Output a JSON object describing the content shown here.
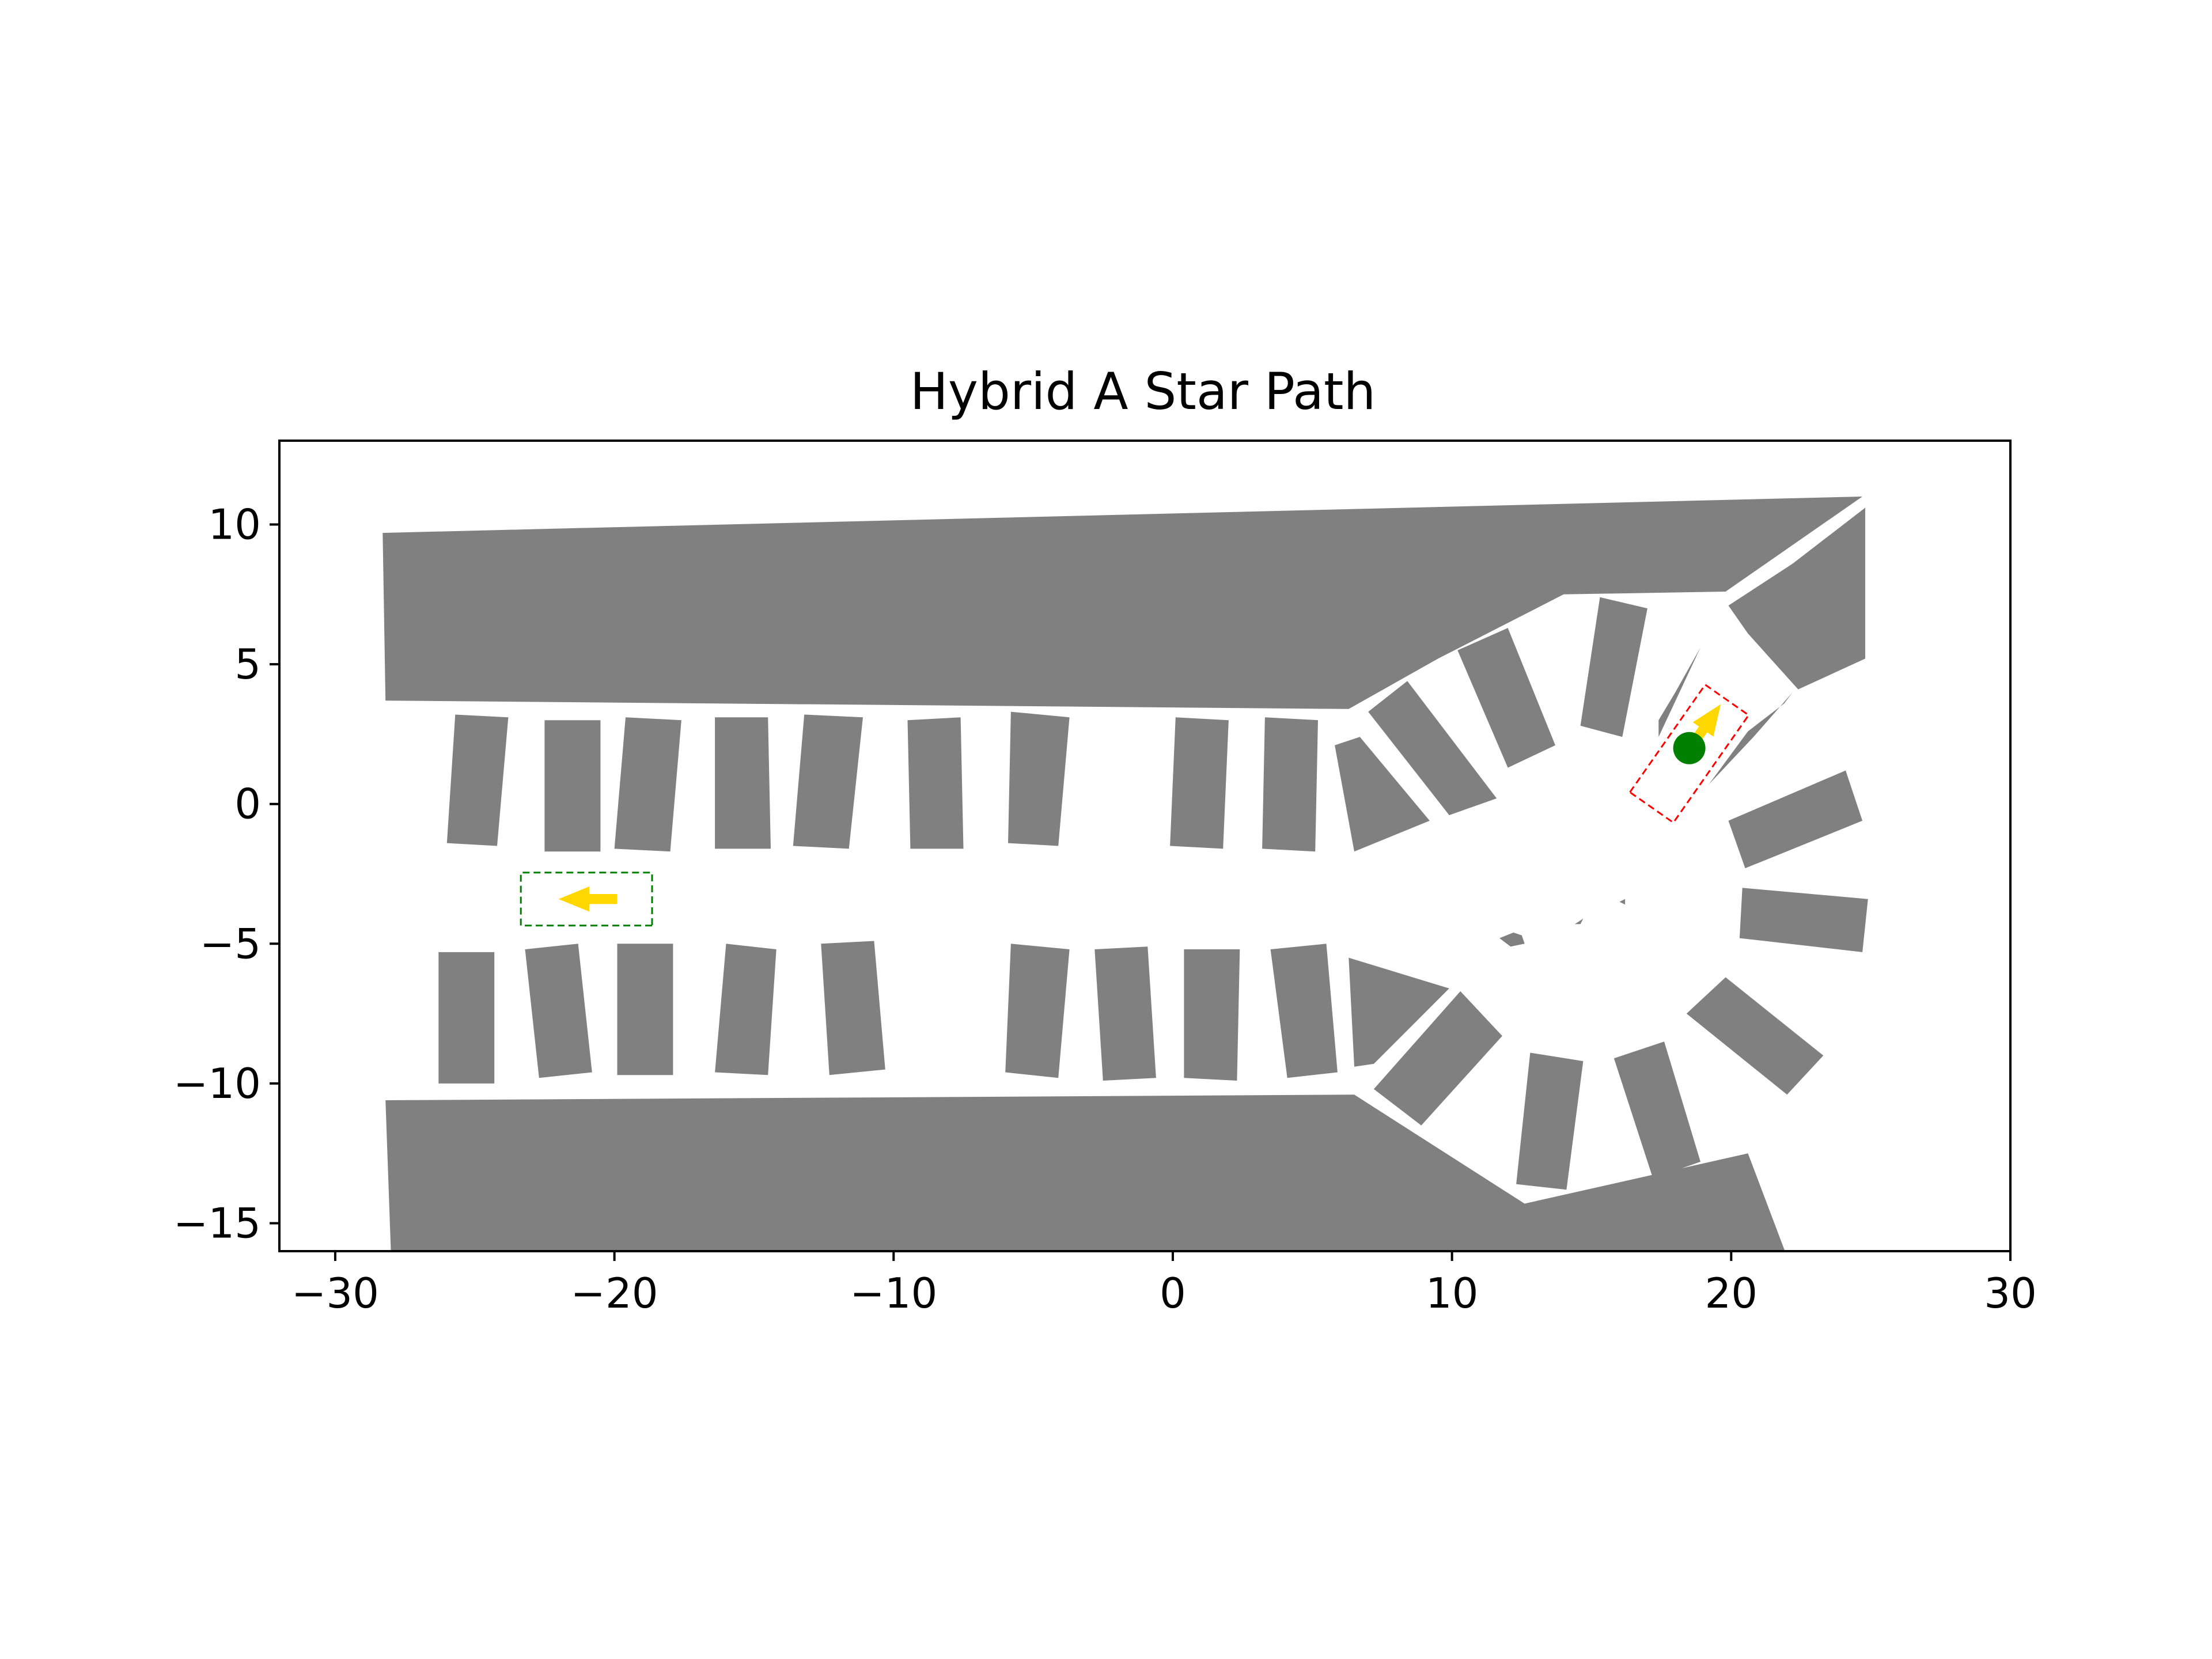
{
  "chart_data": {
    "type": "scatter",
    "title": "Hybrid A Star Path",
    "xlabel": "",
    "ylabel": "",
    "xlim": [
      -32,
      30
    ],
    "ylim": [
      -16,
      13
    ],
    "xticks": [
      -30,
      -20,
      -10,
      0,
      10,
      20,
      30
    ],
    "yticks": [
      10,
      5,
      0,
      -5,
      -10,
      -15
    ],
    "xtick_labels": [
      "−30",
      "−20",
      "−10",
      "0",
      "10",
      "20",
      "30"
    ],
    "ytick_labels": [
      "10",
      "5",
      "0",
      "−5",
      "−10",
      "−15"
    ],
    "grid": false,
    "colors": {
      "obstacle": "#808080",
      "start_box": "#008000",
      "goal_box": "#ff0000",
      "arrow": "#ffd700",
      "current_position": "#008000"
    },
    "obstacles": [
      [
        [
          -28.3,
          9.7
        ],
        [
          24.7,
          11.0
        ],
        [
          19.8,
          7.6
        ],
        [
          14,
          7.5
        ],
        [
          9.5,
          5.2
        ],
        [
          6.3,
          3.4
        ],
        [
          -28.2,
          3.7
        ]
      ],
      [
        [
          -28.2,
          -10.6
        ],
        [
          6.5,
          -10.4
        ],
        [
          12.6,
          -14.3
        ],
        [
          20.6,
          -12.5
        ],
        [
          22,
          -16.2
        ],
        [
          -28,
          -16.2
        ]
      ],
      [
        [
          19.9,
          7.1
        ],
        [
          22.2,
          8.6
        ],
        [
          24.8,
          10.6
        ],
        [
          24.8,
          5.2
        ],
        [
          22.4,
          4.1
        ],
        [
          20.6,
          6.1
        ]
      ],
      [
        [
          -25.7,
          3.2
        ],
        [
          -23.8,
          3.1
        ],
        [
          -24.2,
          -1.5
        ],
        [
          -26,
          -1.4
        ]
      ],
      [
        [
          -22.5,
          3.0
        ],
        [
          -20.5,
          3.0
        ],
        [
          -20.5,
          -1.7
        ],
        [
          -22.5,
          -1.7
        ]
      ],
      [
        [
          -19.6,
          3.1
        ],
        [
          -17.6,
          3.0
        ],
        [
          -18,
          -1.7
        ],
        [
          -20,
          -1.6
        ]
      ],
      [
        [
          -16.4,
          3.1
        ],
        [
          -14.5,
          3.1
        ],
        [
          -14.4,
          -1.6
        ],
        [
          -16.4,
          -1.6
        ]
      ],
      [
        [
          -13.2,
          3.2
        ],
        [
          -11.1,
          3.1
        ],
        [
          -11.6,
          -1.6
        ],
        [
          -13.6,
          -1.5
        ]
      ],
      [
        [
          -9.5,
          3.0
        ],
        [
          -7.6,
          3.1
        ],
        [
          -7.5,
          -1.6
        ],
        [
          -9.4,
          -1.6
        ]
      ],
      [
        [
          -5.8,
          3.3
        ],
        [
          -3.7,
          3.1
        ],
        [
          -4.1,
          -1.5
        ],
        [
          -5.9,
          -1.4
        ]
      ],
      [
        [
          0.1,
          3.1
        ],
        [
          2.0,
          3.0
        ],
        [
          1.8,
          -1.6
        ],
        [
          -0.1,
          -1.5
        ]
      ],
      [
        [
          3.3,
          3.1
        ],
        [
          5.2,
          3.0
        ],
        [
          5.1,
          -1.7
        ],
        [
          3.2,
          -1.6
        ]
      ],
      [
        [
          5.8,
          2.1
        ],
        [
          6.7,
          2.4
        ],
        [
          9.2,
          -0.6
        ],
        [
          6.5,
          -1.7
        ]
      ],
      [
        [
          7.0,
          3.3
        ],
        [
          8.4,
          4.4
        ],
        [
          11.6,
          0.2
        ],
        [
          9.9,
          -0.4
        ]
      ],
      [
        [
          10.2,
          5.5
        ],
        [
          12.0,
          6.3
        ],
        [
          13.7,
          2.1
        ],
        [
          12.0,
          1.3
        ]
      ],
      [
        [
          15.3,
          7.4
        ],
        [
          17.0,
          7.0
        ],
        [
          16.1,
          2.4
        ],
        [
          14.6,
          2.8
        ]
      ],
      [
        [
          17.4,
          2.4
        ],
        [
          18.9,
          5.6
        ],
        [
          18.0,
          4.0
        ],
        [
          17.4,
          3.0
        ]
      ],
      [
        [
          19.2,
          0.7
        ],
        [
          20.8,
          2.4
        ],
        [
          22.2,
          4.0
        ],
        [
          21.9,
          3.6
        ],
        [
          20.6,
          2.6
        ]
      ],
      [
        [
          19.9,
          -0.6
        ],
        [
          24.1,
          1.2
        ],
        [
          24.7,
          -0.6
        ],
        [
          20.5,
          -2.3
        ]
      ],
      [
        [
          20.4,
          -3.0
        ],
        [
          24.9,
          -3.4
        ],
        [
          24.7,
          -5.3
        ],
        [
          20.3,
          -4.8
        ]
      ],
      [
        [
          18.4,
          -7.5
        ],
        [
          22.0,
          -10.4
        ],
        [
          23.3,
          -9.0
        ],
        [
          19.8,
          -6.2
        ]
      ],
      [
        [
          15.8,
          -9.1
        ],
        [
          17.6,
          -8.5
        ],
        [
          18.9,
          -12.8
        ],
        [
          17.2,
          -13.4
        ]
      ],
      [
        [
          12.8,
          -8.9
        ],
        [
          14.7,
          -9.2
        ],
        [
          14.1,
          -13.8
        ],
        [
          12.3,
          -13.6
        ]
      ],
      [
        [
          7.2,
          -10.2
        ],
        [
          8.9,
          -11.5
        ],
        [
          11.8,
          -8.3
        ],
        [
          10.3,
          -6.7
        ]
      ],
      [
        [
          6.3,
          -5.5
        ],
        [
          9.9,
          -6.6
        ],
        [
          7.2,
          -9.3
        ],
        [
          6.5,
          -9.4
        ]
      ],
      [
        [
          3.5,
          -5.2
        ],
        [
          5.5,
          -5.0
        ],
        [
          5.9,
          -9.6
        ],
        [
          4.1,
          -9.8
        ]
      ],
      [
        [
          0.4,
          -5.2
        ],
        [
          2.4,
          -5.2
        ],
        [
          2.3,
          -9.9
        ],
        [
          0.4,
          -9.8
        ]
      ],
      [
        [
          -2.8,
          -5.2
        ],
        [
          -0.9,
          -5.1
        ],
        [
          -0.6,
          -9.8
        ],
        [
          -2.5,
          -9.9
        ]
      ],
      [
        [
          -5.8,
          -5.0
        ],
        [
          -3.7,
          -5.2
        ],
        [
          -4.1,
          -9.8
        ],
        [
          -6.0,
          -9.6
        ]
      ],
      [
        [
          -12.6,
          -5.0
        ],
        [
          -10.7,
          -4.9
        ],
        [
          -10.3,
          -9.5
        ],
        [
          -12.3,
          -9.7
        ]
      ],
      [
        [
          -16.0,
          -5.0
        ],
        [
          -14.2,
          -5.2
        ],
        [
          -14.5,
          -9.7
        ],
        [
          -16.4,
          -9.6
        ]
      ],
      [
        [
          -19.9,
          -5.0
        ],
        [
          -17.9,
          -5.0
        ],
        [
          -17.9,
          -9.7
        ],
        [
          -19.9,
          -9.7
        ]
      ],
      [
        [
          -23.2,
          -5.2
        ],
        [
          -21.3,
          -5.0
        ],
        [
          -20.8,
          -9.6
        ],
        [
          -22.7,
          -9.8
        ]
      ],
      [
        [
          -26.3,
          -5.3
        ],
        [
          -24.3,
          -5.3
        ],
        [
          -24.3,
          -10.0
        ],
        [
          -26.3,
          -10.0
        ]
      ],
      [
        [
          11.7,
          -4.8
        ],
        [
          12.2,
          -4.6
        ],
        [
          12.5,
          -4.7
        ],
        [
          12.6,
          -5.0
        ],
        [
          12.1,
          -5.1
        ]
      ],
      [
        [
          14.4,
          -4.3
        ],
        [
          14.7,
          -4.1
        ],
        [
          14.6,
          -4.3
        ]
      ],
      [
        [
          16.0,
          -3.5
        ],
        [
          16.2,
          -3.4
        ],
        [
          16.2,
          -3.6
        ]
      ]
    ],
    "start_pose": {
      "x": -21,
      "y": -3.4,
      "heading_deg": 180,
      "box_length": 4.7,
      "box_width": 1.9
    },
    "goal_pose": {
      "x": 18.5,
      "y": 1.8,
      "heading_deg": 55,
      "box_length": 4.7,
      "box_width": 1.9
    },
    "current_position": {
      "x": 18.5,
      "y": 2.0
    }
  }
}
